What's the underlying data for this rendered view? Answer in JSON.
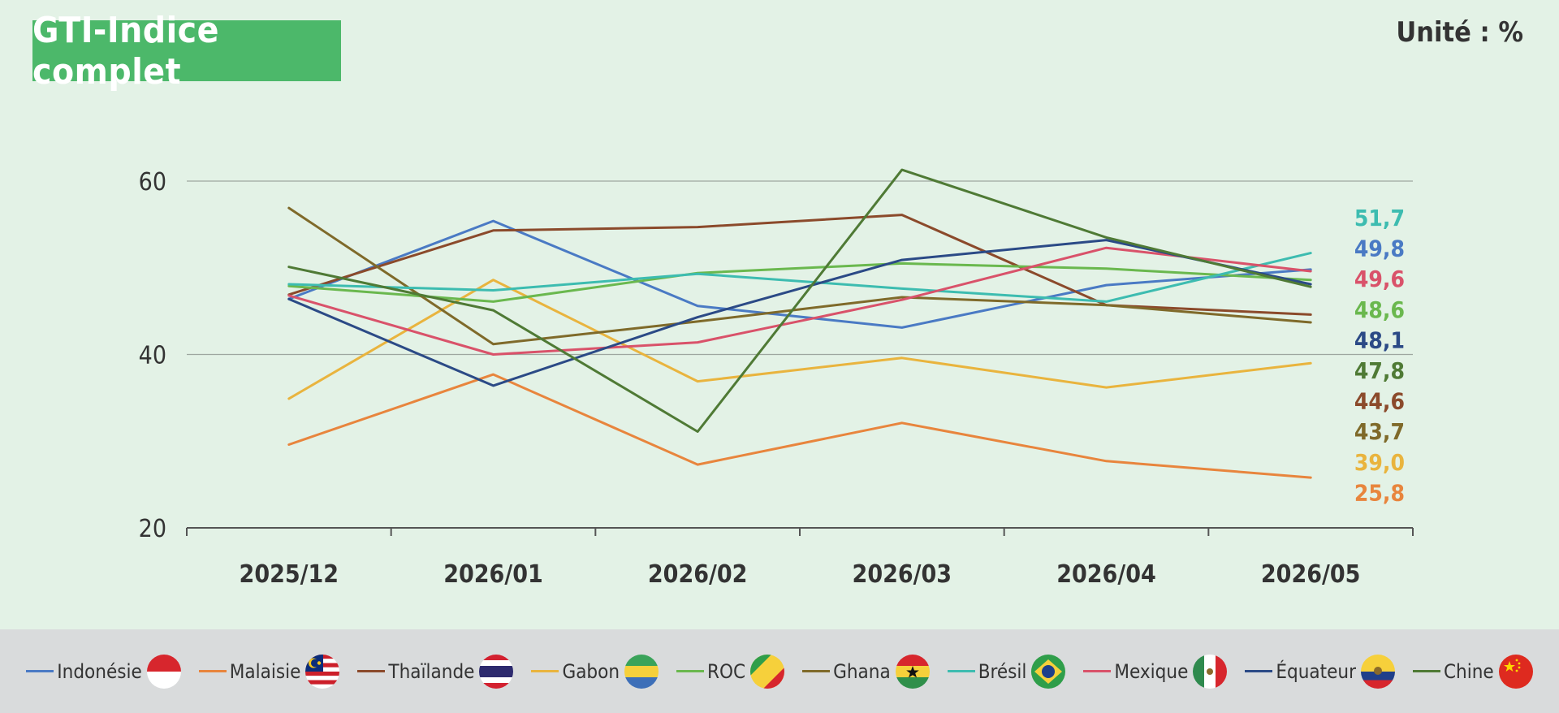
{
  "header": {
    "title": "GTI-Indice complet",
    "unit": "Unité : %"
  },
  "colors": {
    "background": "#e3f2e6",
    "title_box": "#4cb86a",
    "legend_bar": "#d9dbdc",
    "grid": "#9ea7a0",
    "axis": "#555555",
    "text": "#333333"
  },
  "chart_data": {
    "type": "line",
    "categories": [
      "2025/12",
      "2026/01",
      "2026/02",
      "2026/03",
      "2026/04",
      "2026/05"
    ],
    "yticks": [
      20,
      40,
      60
    ],
    "ylim": [
      20,
      60
    ],
    "grid": "horizontal",
    "legend_position": "bottom",
    "series": [
      {
        "name": "Indonésie",
        "color": "#4a7ac4",
        "flag": "indonesia-flag-icon",
        "values": [
          46.4,
          55.4,
          45.6,
          43.1,
          48.0,
          49.8
        ],
        "end_label": "49,8"
      },
      {
        "name": "Malaisie",
        "color": "#e8853d",
        "flag": "malaysia-flag-icon",
        "values": [
          29.6,
          37.7,
          27.3,
          32.1,
          27.7,
          25.8
        ],
        "end_label": "25,8"
      },
      {
        "name": "Thaïlande",
        "color": "#8b4a2b",
        "flag": "thailand-flag-icon",
        "values": [
          46.9,
          54.3,
          54.7,
          56.1,
          45.7,
          44.6
        ],
        "end_label": "44,6"
      },
      {
        "name": "Gabon",
        "color": "#e9b43e",
        "flag": "gabon-flag-icon",
        "values": [
          34.9,
          48.6,
          36.9,
          39.6,
          36.2,
          39.0
        ],
        "end_label": "39,0"
      },
      {
        "name": "ROC",
        "color": "#6ab84e",
        "flag": "roc-flag-icon",
        "values": [
          47.9,
          46.1,
          49.4,
          50.5,
          49.9,
          48.6
        ],
        "end_label": "48,6"
      },
      {
        "name": "Ghana",
        "color": "#7f6a2a",
        "flag": "ghana-flag-icon",
        "values": [
          56.9,
          41.2,
          43.8,
          46.6,
          45.7,
          43.7
        ],
        "end_label": "43,7"
      },
      {
        "name": "Brésil",
        "color": "#3dbcb0",
        "flag": "brazil-flag-icon",
        "values": [
          48.1,
          47.4,
          49.3,
          47.6,
          46.1,
          51.7
        ],
        "end_label": "51,7"
      },
      {
        "name": "Mexique",
        "color": "#d9526a",
        "flag": "mexico-flag-icon",
        "values": [
          46.8,
          40.0,
          41.4,
          46.3,
          52.3,
          49.6
        ],
        "end_label": "49,6"
      },
      {
        "name": "Équateur",
        "color": "#2b4a86",
        "flag": "ecuador-flag-icon",
        "values": [
          46.4,
          36.4,
          44.3,
          50.9,
          53.2,
          48.1
        ],
        "end_label": "48,1"
      },
      {
        "name": "Chine",
        "color": "#4f7a35",
        "flag": "china-flag-icon",
        "values": [
          50.1,
          45.1,
          31.1,
          61.3,
          53.5,
          47.8
        ],
        "end_label": "47,8"
      }
    ],
    "end_label_order": [
      "Brésil",
      "Indonésie",
      "Mexique",
      "ROC",
      "Équateur",
      "Chine",
      "Thaïlande",
      "Ghana",
      "Gabon",
      "Malaisie"
    ]
  }
}
